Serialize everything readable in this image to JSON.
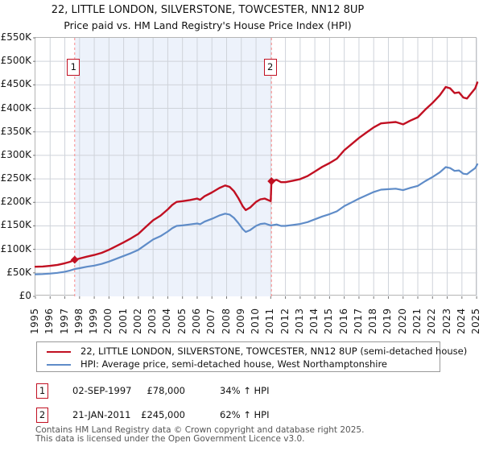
{
  "title": {
    "line1": "22, LITTLE LONDON, SILVERSTONE, TOWCESTER, NN12 8UP",
    "line2": "Price paid vs. HM Land Registry's House Price Index (HPI)"
  },
  "colors": {
    "price_line": "#c11022",
    "hpi_line": "#5f8cc8",
    "shaded_band": "#edf2fb",
    "gridline": "#cfd3da",
    "dashed_marker": "#fb8a8a",
    "axis_border": "#b5b5b5",
    "tick": "#777777",
    "marker_box_border": "#c11022"
  },
  "chart_data": {
    "type": "line",
    "title": "22, LITTLE LONDON, SILVERSTONE, TOWCESTER, NN12 8UP — Price paid vs. HPI",
    "xlabel": "",
    "ylabel": "",
    "grid": true,
    "legend_position": "bottom",
    "xlim": [
      1995,
      2025.05
    ],
    "ylim": [
      0,
      550000
    ],
    "xticks": [
      1995,
      1996,
      1997,
      1998,
      1999,
      2000,
      2001,
      2002,
      2003,
      2004,
      2005,
      2006,
      2007,
      2008,
      2009,
      2010,
      2011,
      2012,
      2013,
      2014,
      2015,
      2016,
      2017,
      2018,
      2019,
      2020,
      2021,
      2022,
      2023,
      2024,
      2025
    ],
    "yticks": [
      [
        0,
        "£0"
      ],
      [
        50000,
        "£50K"
      ],
      [
        100000,
        "£100K"
      ],
      [
        150000,
        "£150K"
      ],
      [
        200000,
        "£200K"
      ],
      [
        250000,
        "£250K"
      ],
      [
        300000,
        "£300K"
      ],
      [
        350000,
        "£350K"
      ],
      [
        400000,
        "£400K"
      ],
      [
        450000,
        "£450K"
      ],
      [
        500000,
        "£500K"
      ],
      [
        550000,
        "£550K"
      ]
    ],
    "background_band": {
      "from": 1997.67,
      "to": 2011.05
    },
    "sale_markers": [
      {
        "label": "1",
        "x": 1997.67,
        "y": 78000
      },
      {
        "label": "2",
        "x": 2011.05,
        "y": 245000
      }
    ],
    "series": [
      {
        "name": "price_paid",
        "points": [
          [
            1995.0,
            63000
          ],
          [
            1995.5,
            63500
          ],
          [
            1996.0,
            65000
          ],
          [
            1996.5,
            67000
          ],
          [
            1997.0,
            70500
          ],
          [
            1997.35,
            73500
          ],
          [
            1997.67,
            78000
          ],
          [
            1998.0,
            80500
          ],
          [
            1998.5,
            84500
          ],
          [
            1999.0,
            88000
          ],
          [
            1999.5,
            92500
          ],
          [
            2000.0,
            99000
          ],
          [
            2000.5,
            107000
          ],
          [
            2001.0,
            115000
          ],
          [
            2001.5,
            123500
          ],
          [
            2002.0,
            133000
          ],
          [
            2002.5,
            147500
          ],
          [
            2003.0,
            162000
          ],
          [
            2003.5,
            171500
          ],
          [
            2004.0,
            185000
          ],
          [
            2004.3,
            194500
          ],
          [
            2004.6,
            201000
          ],
          [
            2005.0,
            202500
          ],
          [
            2005.5,
            205000
          ],
          [
            2006.0,
            208000
          ],
          [
            2006.2,
            205500
          ],
          [
            2006.5,
            213000
          ],
          [
            2007.0,
            221000
          ],
          [
            2007.5,
            230500
          ],
          [
            2007.9,
            236000
          ],
          [
            2008.2,
            233000
          ],
          [
            2008.5,
            224000
          ],
          [
            2008.8,
            209000
          ],
          [
            2009.1,
            191500
          ],
          [
            2009.3,
            183500
          ],
          [
            2009.6,
            189000
          ],
          [
            2010.0,
            201000
          ],
          [
            2010.3,
            206500
          ],
          [
            2010.6,
            208000
          ],
          [
            2011.0,
            202500
          ],
          [
            2011.05,
            245000
          ],
          [
            2011.4,
            248000
          ],
          [
            2011.7,
            243000
          ],
          [
            2012.0,
            243000
          ],
          [
            2012.5,
            246000
          ],
          [
            2013.0,
            249500
          ],
          [
            2013.5,
            256000
          ],
          [
            2014.0,
            265500
          ],
          [
            2014.5,
            275500
          ],
          [
            2015.0,
            283500
          ],
          [
            2015.5,
            293000
          ],
          [
            2016.0,
            311000
          ],
          [
            2016.5,
            324000
          ],
          [
            2017.0,
            337000
          ],
          [
            2017.5,
            348500
          ],
          [
            2018.0,
            359500
          ],
          [
            2018.5,
            368000
          ],
          [
            2019.0,
            369500
          ],
          [
            2019.5,
            371000
          ],
          [
            2020.0,
            366000
          ],
          [
            2020.5,
            374000
          ],
          [
            2021.0,
            381000
          ],
          [
            2021.5,
            397000
          ],
          [
            2022.0,
            411500
          ],
          [
            2022.5,
            428000
          ],
          [
            2022.9,
            445500
          ],
          [
            2023.2,
            442500
          ],
          [
            2023.5,
            432500
          ],
          [
            2023.8,
            434000
          ],
          [
            2024.1,
            423000
          ],
          [
            2024.35,
            421000
          ],
          [
            2024.6,
            431000
          ],
          [
            2024.9,
            442500
          ],
          [
            2025.05,
            455000
          ]
        ]
      },
      {
        "name": "hpi",
        "points": [
          [
            1995.0,
            47000
          ],
          [
            1995.5,
            47500
          ],
          [
            1996.0,
            48500
          ],
          [
            1996.5,
            50000
          ],
          [
            1997.0,
            52500
          ],
          [
            1997.35,
            55000
          ],
          [
            1997.67,
            58000
          ],
          [
            1998.0,
            60000
          ],
          [
            1998.5,
            63000
          ],
          [
            1999.0,
            65500
          ],
          [
            1999.5,
            69000
          ],
          [
            2000.0,
            74000
          ],
          [
            2000.5,
            80000
          ],
          [
            2001.0,
            86000
          ],
          [
            2001.5,
            92000
          ],
          [
            2002.0,
            99000
          ],
          [
            2002.5,
            110000
          ],
          [
            2003.0,
            121000
          ],
          [
            2003.5,
            128000
          ],
          [
            2004.0,
            138000
          ],
          [
            2004.3,
            145000
          ],
          [
            2004.6,
            150000
          ],
          [
            2005.0,
            151000
          ],
          [
            2005.5,
            153000
          ],
          [
            2006.0,
            155000
          ],
          [
            2006.2,
            153500
          ],
          [
            2006.5,
            159000
          ],
          [
            2007.0,
            165000
          ],
          [
            2007.5,
            172000
          ],
          [
            2007.9,
            176000
          ],
          [
            2008.2,
            174000
          ],
          [
            2008.5,
            167000
          ],
          [
            2008.8,
            156000
          ],
          [
            2009.1,
            143000
          ],
          [
            2009.3,
            137000
          ],
          [
            2009.6,
            141000
          ],
          [
            2010.0,
            150000
          ],
          [
            2010.3,
            154000
          ],
          [
            2010.6,
            155000
          ],
          [
            2011.0,
            151000
          ],
          [
            2011.4,
            153000
          ],
          [
            2011.7,
            150000
          ],
          [
            2012.0,
            150000
          ],
          [
            2012.5,
            152000
          ],
          [
            2013.0,
            154000
          ],
          [
            2013.5,
            158000
          ],
          [
            2014.0,
            164000
          ],
          [
            2014.5,
            170000
          ],
          [
            2015.0,
            175000
          ],
          [
            2015.5,
            181000
          ],
          [
            2016.0,
            192000
          ],
          [
            2016.5,
            200000
          ],
          [
            2017.0,
            208000
          ],
          [
            2017.5,
            215000
          ],
          [
            2018.0,
            222000
          ],
          [
            2018.5,
            227000
          ],
          [
            2019.0,
            228000
          ],
          [
            2019.5,
            229000
          ],
          [
            2020.0,
            226000
          ],
          [
            2020.5,
            231000
          ],
          [
            2021.0,
            235000
          ],
          [
            2021.5,
            245000
          ],
          [
            2022.0,
            254000
          ],
          [
            2022.5,
            264000
          ],
          [
            2022.9,
            275000
          ],
          [
            2023.2,
            273000
          ],
          [
            2023.5,
            267000
          ],
          [
            2023.8,
            268000
          ],
          [
            2024.1,
            261000
          ],
          [
            2024.35,
            260000
          ],
          [
            2024.6,
            266000
          ],
          [
            2024.9,
            273000
          ],
          [
            2025.05,
            281000
          ]
        ]
      }
    ]
  },
  "legend": {
    "entries": [
      {
        "series": "price_paid",
        "label": "22, LITTLE LONDON, SILVERSTONE, TOWCESTER, NN12 8UP (semi-detached house)"
      },
      {
        "series": "hpi",
        "label": "HPI: Average price, semi-detached house, West Northamptonshire"
      }
    ]
  },
  "transactions": [
    {
      "num": "1",
      "date": "02-SEP-1997",
      "price": "£78,000",
      "hpi_diff": "34% ↑ HPI"
    },
    {
      "num": "2",
      "date": "21-JAN-2011",
      "price": "£245,000",
      "hpi_diff": "62% ↑ HPI"
    }
  ],
  "footer": {
    "line1": "Contains HM Land Registry data © Crown copyright and database right 2025.",
    "line2": "This data is licensed under the Open Government Licence v3.0."
  }
}
